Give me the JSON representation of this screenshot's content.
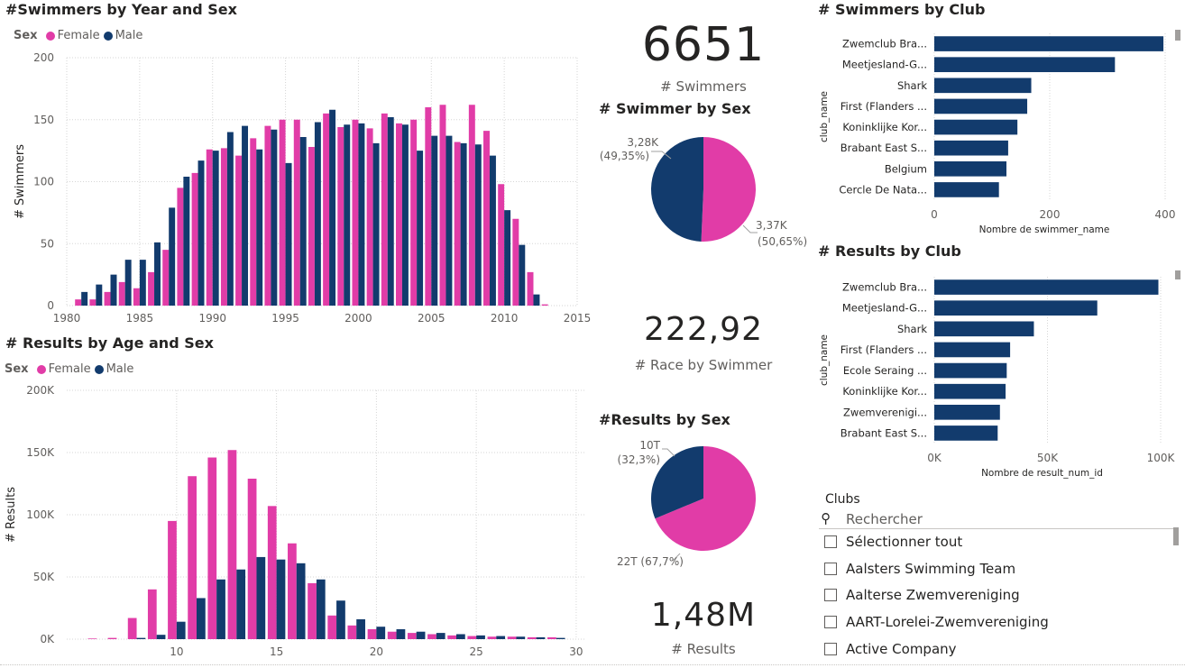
{
  "colors": {
    "female": "#e13ca7",
    "male": "#123b6d",
    "bar": "#123b6d"
  },
  "year_chart": {
    "title": "#Swimmers by Year and Sex",
    "legend_title": "Sex",
    "legend_female": "Female",
    "legend_male": "Male"
  },
  "age_chart": {
    "title": "# Results by Age and Sex",
    "legend_title": "Sex",
    "legend_female": "Female",
    "legend_male": "Male"
  },
  "cards": {
    "swimmers_value": "6651",
    "swimmers_label": "# Swimmers",
    "race_value": "222,92",
    "race_label": "# Race by Swimmer",
    "results_value": "1,48M",
    "results_label": "# Results"
  },
  "pie_swimmers": {
    "title": "# Swimmer by Sex",
    "male_label_1": "3,28K",
    "male_label_2": "(49,35%)",
    "female_label_1": "3,37K",
    "female_label_2": "(50,65%)"
  },
  "pie_results": {
    "title": "#Results by Sex",
    "male_label_1": "10T",
    "male_label_2": "(32,3%)",
    "female_label": "22T (67,7%)"
  },
  "club_swimmers": {
    "title": "# Swimmers by Club"
  },
  "club_results": {
    "title": "# Results by Club"
  },
  "slicer": {
    "title": "Clubs",
    "search_placeholder": "Rechercher",
    "items": [
      "Sélectionner tout",
      "Aalsters Swimming Team",
      "Aalterse Zwemvereniging",
      "AART-Lorelei-Zwemvereniging",
      "Active Company"
    ]
  },
  "chart_data": [
    {
      "type": "bar",
      "title": "#Swimmers by Year and Sex",
      "xlabel": "",
      "ylabel": "# Swimmers",
      "ylim": [
        0,
        200
      ],
      "yticks": [
        0,
        50,
        100,
        150,
        200
      ],
      "xticks": [
        1980,
        1985,
        1990,
        1995,
        2000,
        2005,
        2010,
        2015
      ],
      "legend": "top-left",
      "grid": true,
      "x": [
        1981,
        1982,
        1983,
        1984,
        1985,
        1986,
        1987,
        1988,
        1989,
        1990,
        1991,
        1992,
        1993,
        1994,
        1995,
        1996,
        1997,
        1998,
        1999,
        2000,
        2001,
        2002,
        2003,
        2004,
        2005,
        2006,
        2007,
        2008,
        2009,
        2010,
        2011,
        2012,
        2013
      ],
      "series": [
        {
          "name": "Female",
          "values": [
            5,
            5,
            11,
            19,
            14,
            27,
            45,
            95,
            107,
            126,
            127,
            121,
            135,
            145,
            150,
            150,
            128,
            155,
            144,
            150,
            143,
            155,
            147,
            150,
            160,
            162,
            132,
            162,
            141,
            98,
            70,
            27,
            1
          ]
        },
        {
          "name": "Male",
          "values": [
            11,
            17,
            25,
            37,
            37,
            51,
            79,
            104,
            117,
            125,
            140,
            145,
            126,
            142,
            115,
            136,
            148,
            158,
            146,
            147,
            131,
            152,
            146,
            125,
            137,
            137,
            131,
            130,
            121,
            77,
            49,
            9,
            0
          ]
        }
      ]
    },
    {
      "type": "bar",
      "title": "# Results by Age and Sex",
      "xlabel": "",
      "ylabel": "# Results",
      "ylim": [
        0,
        200000
      ],
      "yticks": [
        "0K",
        "50K",
        "100K",
        "150K",
        "200K"
      ],
      "xticks": [
        10,
        15,
        20,
        25,
        30
      ],
      "legend": "top-left",
      "grid": true,
      "x": [
        6,
        7,
        8,
        9,
        10,
        11,
        12,
        13,
        14,
        15,
        16,
        17,
        18,
        19,
        20,
        21,
        22,
        23,
        24,
        25,
        26,
        27,
        28,
        29,
        30
      ],
      "series": [
        {
          "name": "Female",
          "values": [
            500,
            1000,
            17000,
            40000,
            95000,
            131000,
            146000,
            152000,
            129000,
            107000,
            77000,
            45000,
            19000,
            11000,
            8000,
            6000,
            5000,
            4000,
            3000,
            2500,
            2000,
            2000,
            1500,
            1500,
            0
          ]
        },
        {
          "name": "Male",
          "values": [
            0,
            0,
            1000,
            3500,
            14000,
            33000,
            48000,
            56000,
            66000,
            64000,
            61000,
            48000,
            31000,
            16000,
            10000,
            8000,
            6000,
            5000,
            4000,
            3000,
            2500,
            2000,
            1500,
            1000,
            0
          ]
        }
      ]
    },
    {
      "type": "pie",
      "title": "# Swimmer by Sex",
      "categories": [
        "Female",
        "Male"
      ],
      "values": [
        3370,
        3280
      ],
      "percent": [
        50.65,
        49.35
      ]
    },
    {
      "type": "pie",
      "title": "#Results by Sex",
      "categories": [
        "Female",
        "Male"
      ],
      "values": [
        22,
        10
      ],
      "percent": [
        67.7,
        32.3
      ]
    },
    {
      "type": "bar",
      "orientation": "horizontal",
      "title": "# Swimmers by Club",
      "xlabel": "Nombre de swimmer_name",
      "ylabel": "club_name",
      "xlim": [
        0,
        400
      ],
      "xticks": [
        0,
        200,
        400
      ],
      "categories": [
        "Zwemclub Bra...",
        "Meetjesland-G...",
        "Shark",
        "First (Flanders ...",
        "Koninklijke Kor...",
        "Brabant East S...",
        "Belgium",
        "Cercle De Nata..."
      ],
      "values": [
        397,
        313,
        168,
        161,
        144,
        128,
        125,
        112
      ]
    },
    {
      "type": "bar",
      "orientation": "horizontal",
      "title": "# Results by Club",
      "xlabel": "Nombre de result_num_id",
      "ylabel": "club_name",
      "xlim": [
        0,
        100000
      ],
      "xticks": [
        "0K",
        "50K",
        "100K"
      ],
      "categories": [
        "Zwemclub Bra...",
        "Meetjesland-G...",
        "Shark",
        "First (Flanders ...",
        "Ecole Seraing ...",
        "Koninklijke Kor...",
        "Zwemverenigi...",
        "Brabant East S..."
      ],
      "values": [
        99000,
        72000,
        44000,
        33500,
        32000,
        31500,
        29000,
        28000
      ]
    }
  ]
}
